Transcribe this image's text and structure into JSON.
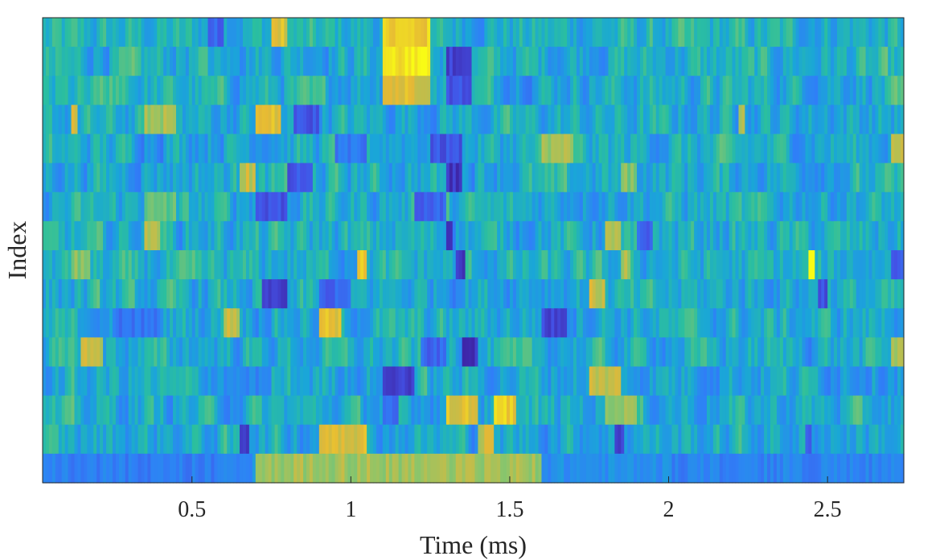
{
  "chart_data": {
    "type": "heatmap",
    "title": "",
    "xlabel": "Time (ms)",
    "ylabel": "Index",
    "xlim": [
      0.03,
      2.74
    ],
    "x_ticks": [
      0.5,
      1,
      1.5,
      2,
      2.5
    ],
    "x_tick_labels": [
      "0.5",
      "1",
      "1.5",
      "2",
      "2.5"
    ],
    "y_ticks": [],
    "n_rows": 16,
    "n_cols": 271,
    "colormap": "parula",
    "colormap_stops": [
      "#3e26a8",
      "#4352e6",
      "#2f80f7",
      "#1aa6d8",
      "#2bbf9e",
      "#8dc56a",
      "#e6b835",
      "#f9fb15"
    ],
    "grid": false,
    "legend": "none",
    "value_range": [
      0,
      1
    ],
    "rows": [
      {
        "base": 0.48,
        "features": [
          [
            0.75,
            0.8,
            0.85
          ],
          [
            1.1,
            1.25,
            0.9
          ],
          [
            0.55,
            0.6,
            0.2
          ]
        ]
      },
      {
        "base": 0.47,
        "features": [
          [
            1.1,
            1.25,
            0.95
          ],
          [
            1.3,
            1.38,
            0.1
          ],
          [
            0.55,
            0.65,
            0.45
          ]
        ]
      },
      {
        "base": 0.47,
        "features": [
          [
            1.1,
            1.25,
            0.85
          ],
          [
            1.3,
            1.38,
            0.15
          ],
          [
            0.2,
            0.3,
            0.6
          ]
        ]
      },
      {
        "base": 0.45,
        "features": [
          [
            0.12,
            0.14,
            0.8
          ],
          [
            0.35,
            0.45,
            0.75
          ],
          [
            0.7,
            0.78,
            0.85
          ],
          [
            0.82,
            0.9,
            0.15
          ],
          [
            2.22,
            2.24,
            0.8
          ]
        ]
      },
      {
        "base": 0.46,
        "features": [
          [
            0.95,
            1.05,
            0.25
          ],
          [
            1.25,
            1.35,
            0.15
          ],
          [
            1.6,
            1.7,
            0.75
          ],
          [
            2.7,
            2.74,
            0.8
          ]
        ]
      },
      {
        "base": 0.46,
        "features": [
          [
            0.65,
            0.7,
            0.8
          ],
          [
            0.8,
            0.88,
            0.15
          ],
          [
            1.3,
            1.35,
            0.05
          ],
          [
            1.85,
            1.9,
            0.7
          ]
        ]
      },
      {
        "base": 0.46,
        "features": [
          [
            0.7,
            0.8,
            0.15
          ],
          [
            1.2,
            1.3,
            0.2
          ],
          [
            0.35,
            0.45,
            0.65
          ]
        ]
      },
      {
        "base": 0.46,
        "features": [
          [
            0.35,
            0.4,
            0.8
          ],
          [
            1.3,
            1.32,
            0.05
          ],
          [
            1.8,
            1.85,
            0.75
          ],
          [
            1.9,
            1.95,
            0.2
          ]
        ]
      },
      {
        "base": 0.46,
        "features": [
          [
            1.02,
            1.05,
            0.9
          ],
          [
            1.33,
            1.36,
            0.05
          ],
          [
            2.44,
            2.46,
            1.0
          ],
          [
            2.7,
            2.74,
            0.2
          ],
          [
            0.12,
            0.18,
            0.7
          ],
          [
            1.85,
            1.88,
            0.75
          ]
        ]
      },
      {
        "base": 0.45,
        "features": [
          [
            0.72,
            0.8,
            0.05
          ],
          [
            0.9,
            1.0,
            0.2
          ],
          [
            1.75,
            1.8,
            0.8
          ],
          [
            2.47,
            2.5,
            0.15
          ]
        ]
      },
      {
        "base": 0.46,
        "features": [
          [
            0.9,
            0.97,
            0.85
          ],
          [
            0.6,
            0.65,
            0.8
          ],
          [
            1.6,
            1.68,
            0.1
          ],
          [
            0.25,
            0.4,
            0.25
          ]
        ]
      },
      {
        "base": 0.46,
        "features": [
          [
            0.15,
            0.22,
            0.8
          ],
          [
            1.35,
            1.4,
            0.05
          ],
          [
            1.22,
            1.3,
            0.2
          ],
          [
            2.7,
            2.74,
            0.75
          ]
        ]
      },
      {
        "base": 0.45,
        "features": [
          [
            1.1,
            1.2,
            0.1
          ],
          [
            1.75,
            1.85,
            0.8
          ],
          [
            0.6,
            0.75,
            0.3
          ]
        ]
      },
      {
        "base": 0.45,
        "features": [
          [
            1.3,
            1.4,
            0.85
          ],
          [
            1.45,
            1.52,
            0.9
          ],
          [
            1.1,
            1.15,
            0.2
          ],
          [
            1.8,
            1.9,
            0.75
          ]
        ]
      },
      {
        "base": 0.45,
        "features": [
          [
            0.65,
            0.68,
            0.1
          ],
          [
            0.9,
            1.05,
            0.85
          ],
          [
            1.4,
            1.45,
            0.8
          ],
          [
            1.83,
            1.86,
            0.1
          ],
          [
            2.43,
            2.45,
            0.15
          ]
        ]
      },
      {
        "base": 0.34,
        "features": [
          [
            0.7,
            1.6,
            0.75
          ],
          [
            0.03,
            0.65,
            0.28
          ],
          [
            2.0,
            2.74,
            0.3
          ]
        ]
      }
    ]
  }
}
